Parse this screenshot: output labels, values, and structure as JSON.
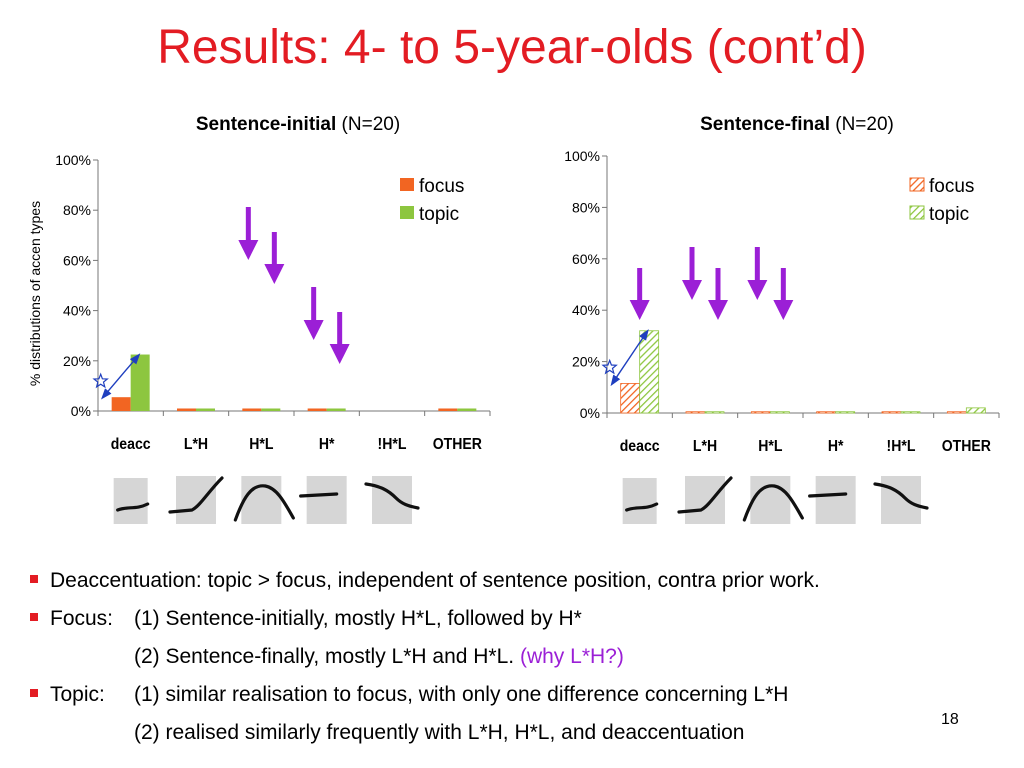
{
  "slide": {
    "title": "Results: 4- to 5-year-olds (cont’d)",
    "page_number": "18"
  },
  "colors": {
    "title": "#e31c23",
    "focus": "#f26522",
    "topic": "#8dc63f",
    "arrow": "#9b1fd6",
    "double_arrow": "#1f3fbf"
  },
  "chart_data": [
    {
      "type": "bar",
      "title": "Sentence-initial",
      "title_suffix": "(N=20)",
      "ylabel": "% distributions of accen types",
      "ylim": [
        0,
        100
      ],
      "y_ticks": [
        "0%",
        "20%",
        "40%",
        "60%",
        "80%",
        "100%"
      ],
      "categories": [
        "deacc",
        "L*H",
        "H*L",
        "H*",
        "!H*L",
        "OTHER"
      ],
      "series": [
        {
          "name": "focus",
          "values": [
            5.5,
            1,
            1,
            1,
            0,
            1
          ]
        },
        {
          "name": "topic",
          "values": [
            22.5,
            1,
            1,
            1,
            0,
            1
          ]
        }
      ],
      "fill": "solid",
      "legend_position": "top-right",
      "grid": false,
      "annotations": {
        "double_arrow_category": "deacc",
        "down_arrows": [
          "H*L",
          "H*L",
          "H*",
          "H*"
        ]
      }
    },
    {
      "type": "bar",
      "title": "Sentence-final",
      "title_suffix": "(N=20)",
      "ylabel": "",
      "ylim": [
        0,
        100
      ],
      "y_ticks": [
        "0%",
        "20%",
        "40%",
        "60%",
        "80%",
        "100%"
      ],
      "categories": [
        "deacc",
        "L*H",
        "H*L",
        "H*",
        "!H*L",
        "OTHER"
      ],
      "series": [
        {
          "name": "focus",
          "values": [
            11.5,
            0.5,
            0.5,
            0.5,
            0.5,
            0.5
          ]
        },
        {
          "name": "topic",
          "values": [
            32,
            0.5,
            0.5,
            0.5,
            0.5,
            2
          ]
        }
      ],
      "fill": "hatched",
      "legend_position": "top-right",
      "grid": false,
      "annotations": {
        "double_arrow_category": "deacc",
        "down_arrows": [
          "deacc",
          "L*H",
          "L*H",
          "H*L",
          "H*L"
        ]
      }
    }
  ],
  "contour_icons": [
    "deacc-contour-icon",
    "rise-contour-icon",
    "rise-fall-contour-icon",
    "high-contour-icon",
    "downstepped-fall-contour-icon"
  ],
  "bullets": {
    "b1": "Deaccentuation: topic > focus, independent of sentence position, contra prior work.",
    "b2_head": "Focus:",
    "b2_text": "(1) Sentence-initially, mostly H*L, followed by H*",
    "b3_text": "(2) Sentence-finally, mostly L*H and H*L.",
    "b3_why": "(why L*H?)",
    "b4_head": "Topic:",
    "b4_text": "(1) similar realisation to focus, with only one difference concerning L*H",
    "b5_text": "(2) realised similarly frequently with L*H, H*L, and deaccentuation"
  }
}
